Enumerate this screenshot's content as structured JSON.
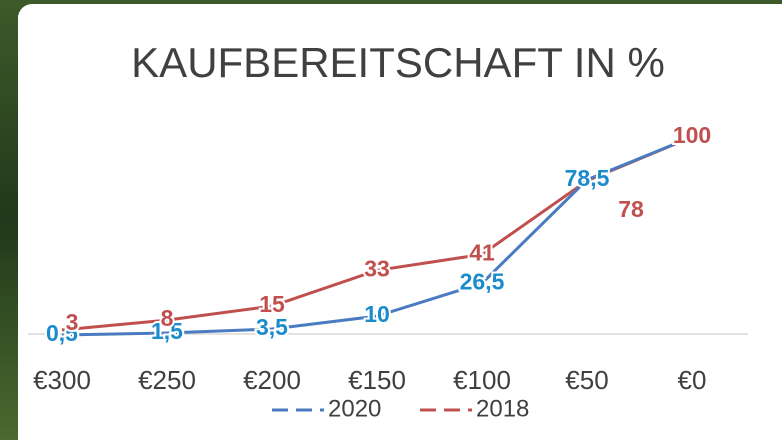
{
  "chart_data": {
    "type": "line",
    "title": "KAUFBEREITSCHAFT IN %",
    "categories": [
      "€300",
      "€250",
      "€200",
      "€150",
      "€100",
      "€50",
      "€0"
    ],
    "series": [
      {
        "name": "2020",
        "color": "#4a7bc0",
        "label_color": "#1a8ccc",
        "dashed_legend": true,
        "values": [
          0.5,
          1.5,
          3.5,
          10,
          26.5,
          78.5,
          100
        ],
        "value_labels": [
          "0,5",
          "1,5",
          "3,5",
          "10",
          "26,5",
          "78,5",
          "100"
        ]
      },
      {
        "name": "2018",
        "color": "#c0504d",
        "label_color": "#c0504d",
        "dashed_legend": true,
        "values": [
          3,
          8,
          15,
          33,
          41,
          78,
          100
        ]
      }
    ],
    "ylim": [
      0,
      100
    ],
    "legend": "bottom"
  }
}
